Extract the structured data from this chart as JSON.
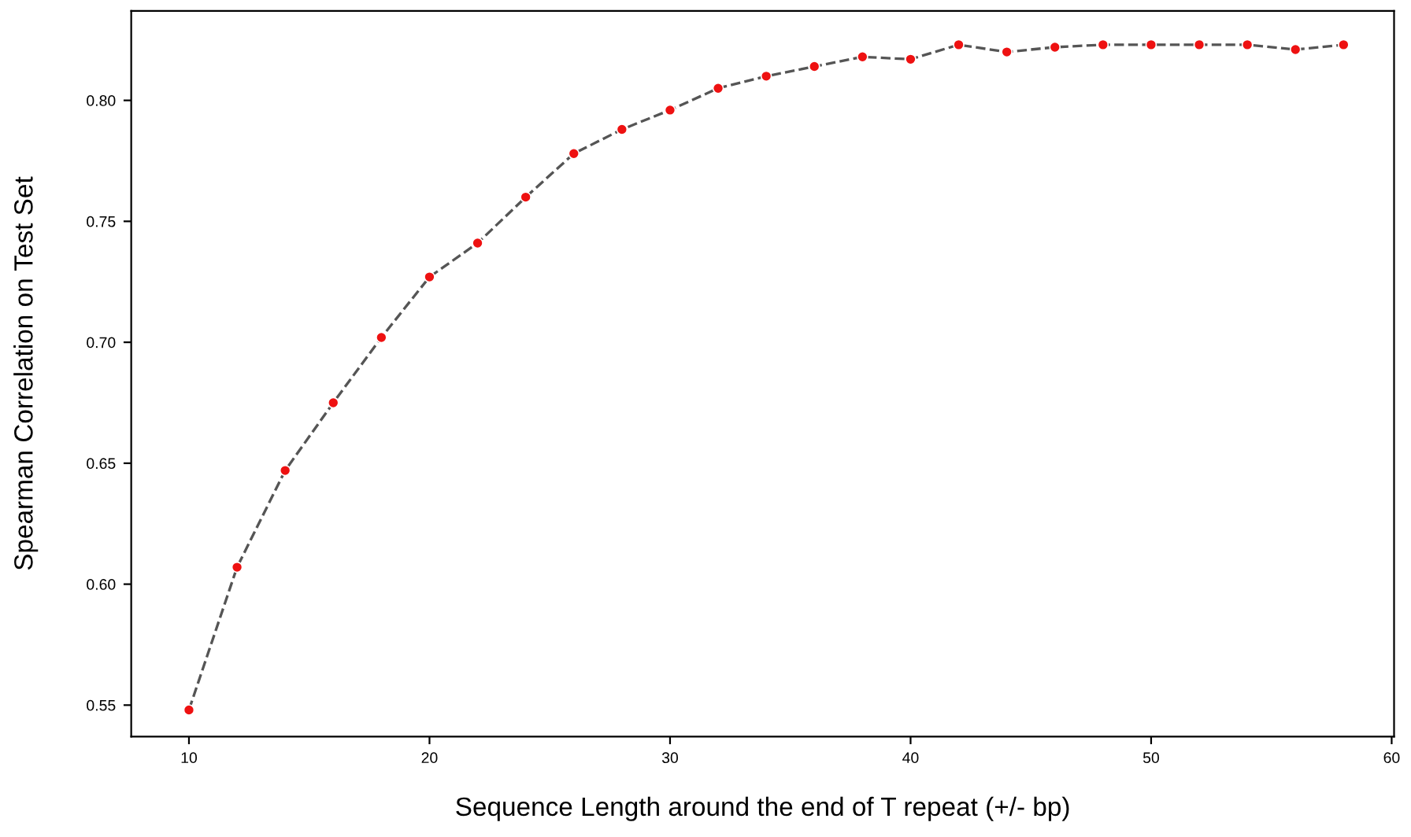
{
  "chart_data": {
    "type": "line",
    "xlabel": "Sequence Length around the end of T repeat (+/- bp)",
    "ylabel": "Spearman Correlation on Test Set",
    "x": [
      10,
      12,
      14,
      16,
      18,
      20,
      22,
      24,
      26,
      28,
      30,
      32,
      34,
      36,
      38,
      40,
      42,
      44,
      46,
      48,
      50,
      52,
      54,
      56,
      58
    ],
    "series": [
      {
        "color": "#555555",
        "colors": [
          "#ee1111",
          "#ee1111",
          "#ee1111",
          "#ee1111",
          "#ee1111",
          "#ee1111",
          "#ee1111",
          "#ee1111",
          "#ee1111",
          "#ee1111",
          "#ee1111",
          "#ee1111",
          "#ee1111",
          "#ee1111",
          "#ee1111",
          "#ee1111",
          "#ee1111",
          "#ee1111",
          "#ee1111",
          "#ee1111",
          "#ee1111",
          "#ee1111",
          "#ee1111",
          "#ee1111",
          "#ee1111"
        ],
        "values": [
          0.548,
          0.607,
          0.647,
          0.675,
          0.702,
          0.727,
          0.741,
          0.76,
          0.778,
          0.788,
          0.796,
          0.805,
          0.81,
          0.814,
          0.818,
          0.817,
          0.823,
          0.82,
          0.822,
          0.823,
          0.823,
          0.823,
          0.823,
          0.821,
          0.823
        ]
      }
    ],
    "xlim": [
      7.6,
      60.1
    ],
    "xticks": [
      10,
      20,
      30,
      40,
      50,
      60
    ],
    "ylim": [
      0.537,
      0.837
    ],
    "yticks": [
      {
        "value": 0.55,
        "label": "0.55"
      },
      {
        "value": 0.6,
        "label": "0.60"
      },
      {
        "value": 0.65,
        "label": "0.65"
      },
      {
        "value": 0.7,
        "label": "0.70"
      },
      {
        "value": 0.75,
        "label": "0.75"
      },
      {
        "value": 0.8,
        "label": "0.80"
      }
    ],
    "marker": "circle",
    "line_style": "dashed",
    "grid": false,
    "legend": false
  }
}
